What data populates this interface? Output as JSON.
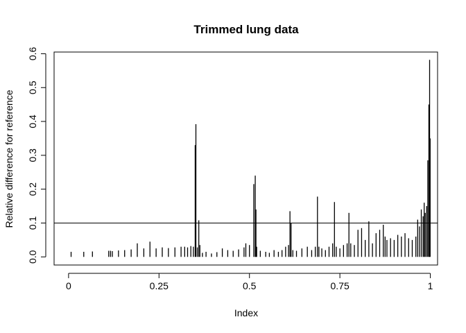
{
  "chart_data": {
    "type": "bar",
    "title": "Trimmed lung data",
    "xlabel": "Index",
    "ylabel": "Relative difference for reference",
    "xlim": [
      -0.04,
      1.02
    ],
    "ylim": [
      -0.024,
      0.605
    ],
    "x_ticks": [
      {
        "value": 0,
        "label": "0"
      },
      {
        "value": 0.25,
        "label": "0.25"
      },
      {
        "value": 0.5,
        "label": "0.5"
      },
      {
        "value": 0.75,
        "label": "0.75"
      },
      {
        "value": 1,
        "label": "1"
      }
    ],
    "y_ticks": [
      {
        "value": 0.0,
        "label": "0.0"
      },
      {
        "value": 0.1,
        "label": "0.1"
      },
      {
        "value": 0.2,
        "label": "0.2"
      },
      {
        "value": 0.3,
        "label": "0.3"
      },
      {
        "value": 0.4,
        "label": "0.4"
      },
      {
        "value": 0.5,
        "label": "0.5"
      },
      {
        "value": 0.6,
        "label": "0.6"
      }
    ],
    "reference_line": {
      "y": 0.1
    },
    "grid": false,
    "legend": "none",
    "series": [
      {
        "x": [
          0.007,
          0.042,
          0.066,
          0.111,
          0.116,
          0.121,
          0.138,
          0.155,
          0.173,
          0.19,
          0.208,
          0.225,
          0.242,
          0.259,
          0.276,
          0.294,
          0.311,
          0.321,
          0.329,
          0.338,
          0.345,
          0.35,
          0.352,
          0.356,
          0.36,
          0.363,
          0.37,
          0.38,
          0.395,
          0.41,
          0.425,
          0.44,
          0.455,
          0.47,
          0.485,
          0.49,
          0.5,
          0.512,
          0.516,
          0.518,
          0.52,
          0.53,
          0.545,
          0.555,
          0.568,
          0.58,
          0.59,
          0.6,
          0.608,
          0.612,
          0.615,
          0.62,
          0.63,
          0.645,
          0.66,
          0.672,
          0.682,
          0.688,
          0.692,
          0.7,
          0.71,
          0.72,
          0.73,
          0.735,
          0.74,
          0.75,
          0.76,
          0.77,
          0.775,
          0.78,
          0.79,
          0.8,
          0.81,
          0.82,
          0.83,
          0.84,
          0.85,
          0.86,
          0.87,
          0.875,
          0.88,
          0.89,
          0.9,
          0.91,
          0.92,
          0.93,
          0.94,
          0.95,
          0.96,
          0.965,
          0.97,
          0.975,
          0.98,
          0.983,
          0.986,
          0.99,
          0.993,
          0.996,
          0.998,
          0.9995
        ],
        "values": [
          0.015,
          0.015,
          0.016,
          0.018,
          0.018,
          0.017,
          0.019,
          0.02,
          0.022,
          0.04,
          0.025,
          0.045,
          0.025,
          0.028,
          0.026,
          0.028,
          0.03,
          0.03,
          0.028,
          0.032,
          0.03,
          0.33,
          0.392,
          0.028,
          0.108,
          0.035,
          0.012,
          0.015,
          0.01,
          0.014,
          0.025,
          0.02,
          0.018,
          0.022,
          0.028,
          0.04,
          0.035,
          0.215,
          0.24,
          0.14,
          0.03,
          0.018,
          0.015,
          0.012,
          0.02,
          0.015,
          0.02,
          0.03,
          0.035,
          0.135,
          0.1,
          0.02,
          0.018,
          0.025,
          0.03,
          0.02,
          0.03,
          0.178,
          0.03,
          0.025,
          0.02,
          0.03,
          0.04,
          0.162,
          0.03,
          0.025,
          0.035,
          0.04,
          0.13,
          0.04,
          0.035,
          0.08,
          0.085,
          0.05,
          0.105,
          0.04,
          0.07,
          0.08,
          0.095,
          0.06,
          0.05,
          0.055,
          0.05,
          0.065,
          0.06,
          0.07,
          0.055,
          0.05,
          0.06,
          0.11,
          0.09,
          0.14,
          0.12,
          0.16,
          0.13,
          0.15,
          0.285,
          0.45,
          0.582,
          0.35
        ]
      }
    ]
  }
}
